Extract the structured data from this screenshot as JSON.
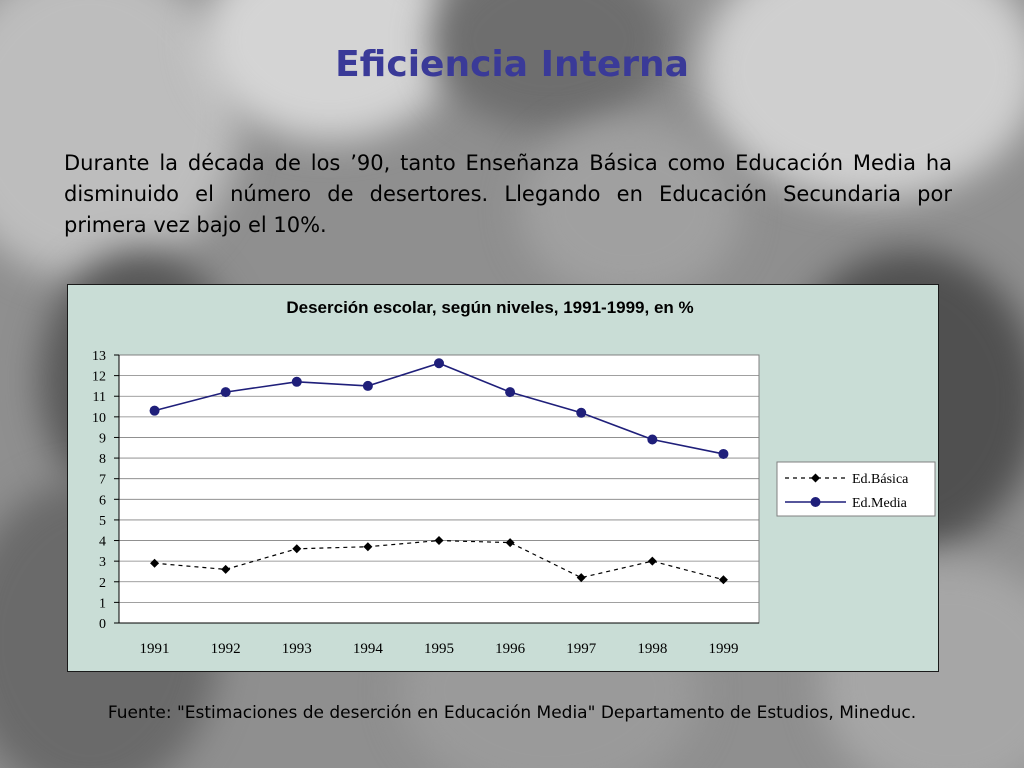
{
  "slide": {
    "title": "Eficiencia Interna",
    "body": "Durante la década de los ’90, tanto Enseñanza Básica como Educación Media ha disminuido el número de desertores. Llegando en Educación Secundaria por primera vez bajo el 10%.",
    "source": "Fuente: \"Estimaciones de deserción en Educación Media\" Departamento de Estudios, Mineduc."
  },
  "colors": {
    "title": "#3a3a98",
    "chart_background": "#c9ddd6",
    "plot_background": "#ffffff",
    "series_media": "#1f1f7a",
    "series_basica": "#000000"
  },
  "chart_data": {
    "type": "line",
    "title": "Deserción escolar, según niveles, 1991-1999, en %",
    "categories": [
      "1991",
      "1992",
      "1993",
      "1994",
      "1995",
      "1996",
      "1997",
      "1998",
      "1999"
    ],
    "series": [
      {
        "name": "Ed.Básica",
        "marker": "diamond",
        "line_style": "dashed",
        "values": [
          2.9,
          2.6,
          3.6,
          3.7,
          4.0,
          3.9,
          2.2,
          3.0,
          2.1
        ]
      },
      {
        "name": "Ed.Media",
        "marker": "circle",
        "line_style": "solid",
        "values": [
          10.3,
          11.2,
          11.7,
          11.5,
          12.6,
          11.2,
          10.2,
          8.9,
          8.2
        ]
      }
    ],
    "yticks": [
      "0",
      "1",
      "2",
      "3",
      "4",
      "5",
      "6",
      "7",
      "8",
      "9",
      "10",
      "11",
      "12",
      "13"
    ],
    "ylim": [
      0,
      13
    ],
    "grid": true,
    "legend_position": "right"
  }
}
